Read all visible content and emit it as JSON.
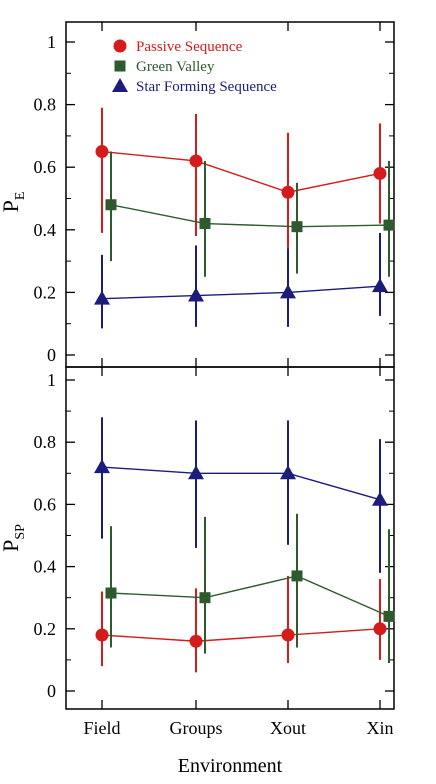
{
  "chart_data": [
    {
      "type": "scatter",
      "panel": "top",
      "ylabel": "P",
      "ylabel_sub": "E",
      "ylim": [
        0,
        1
      ],
      "yticks": [
        "0",
        "0.2",
        "0.4",
        "0.6",
        "0.8",
        "1"
      ],
      "categories": [
        "Field",
        "Groups",
        "Xout",
        "Xin"
      ],
      "legend": "top-left",
      "series": [
        {
          "name": "Passive Sequence",
          "marker": "circle",
          "color": "#d41c1c",
          "values": [
            0.65,
            0.62,
            0.52,
            0.58
          ],
          "err_low": [
            0.39,
            0.38,
            0.33,
            0.42
          ],
          "err_high": [
            0.79,
            0.77,
            0.71,
            0.74
          ]
        },
        {
          "name": "Green Valley",
          "marker": "square",
          "color": "#2e5a2e",
          "values": [
            0.48,
            0.42,
            0.41,
            0.415
          ],
          "err_low": [
            0.3,
            0.25,
            0.26,
            0.25
          ],
          "err_high": [
            0.65,
            0.62,
            0.55,
            0.62
          ]
        },
        {
          "name": "Star Forming Sequence",
          "marker": "triangle",
          "color": "#1c1c7a",
          "values": [
            0.18,
            0.19,
            0.2,
            0.22
          ],
          "err_low": [
            0.085,
            0.09,
            0.09,
            0.125
          ],
          "err_high": [
            0.32,
            0.35,
            0.34,
            0.39
          ]
        }
      ]
    },
    {
      "type": "scatter",
      "panel": "bottom",
      "ylabel": "P",
      "ylabel_sub": "SP",
      "xlabel": "Environment",
      "ylim": [
        0,
        1
      ],
      "yticks": [
        "0",
        "0.2",
        "0.4",
        "0.6",
        "0.8",
        "1"
      ],
      "categories": [
        "Field",
        "Groups",
        "Xout",
        "Xin"
      ],
      "series": [
        {
          "name": "Passive Sequence",
          "marker": "circle",
          "color": "#d41c1c",
          "values": [
            0.18,
            0.16,
            0.18,
            0.2
          ],
          "err_low": [
            0.08,
            0.06,
            0.09,
            0.1
          ],
          "err_high": [
            0.32,
            0.33,
            0.37,
            0.36
          ]
        },
        {
          "name": "Green Valley",
          "marker": "square",
          "color": "#2e5a2e",
          "values": [
            0.315,
            0.3,
            0.37,
            0.24
          ],
          "err_low": [
            0.14,
            0.12,
            0.14,
            0.09
          ],
          "err_high": [
            0.53,
            0.56,
            0.57,
            0.52
          ]
        },
        {
          "name": "Star Forming Sequence",
          "marker": "triangle",
          "color": "#1c1c7a",
          "values": [
            0.72,
            0.7,
            0.7,
            0.615
          ],
          "err_low": [
            0.49,
            0.46,
            0.47,
            0.38
          ],
          "err_high": [
            0.88,
            0.87,
            0.87,
            0.81
          ]
        }
      ]
    }
  ]
}
